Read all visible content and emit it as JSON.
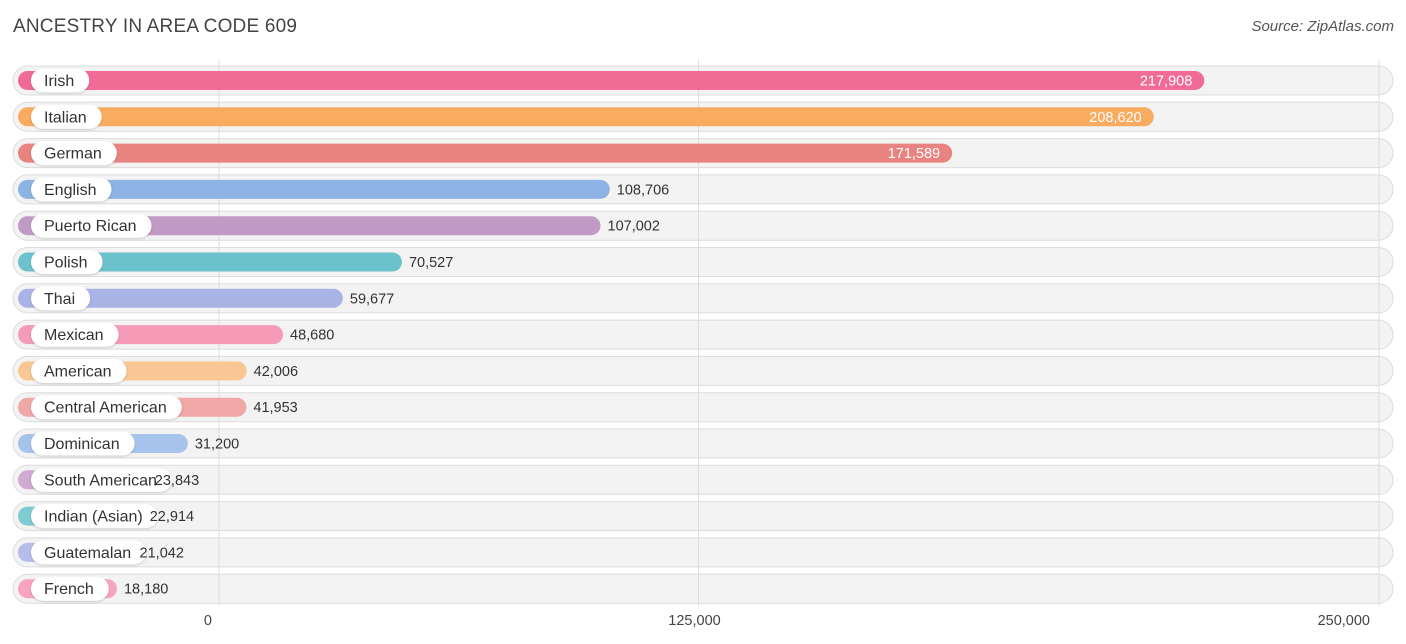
{
  "header": {
    "title": "ANCESTRY IN AREA CODE 609",
    "source": "Source: ZipAtlas.com"
  },
  "chart_data": {
    "type": "bar",
    "orientation": "horizontal",
    "title": "ANCESTRY IN AREA CODE 609",
    "xlabel": "",
    "ylabel": "",
    "xlim": [
      0,
      250000
    ],
    "ticks": [
      0,
      125000,
      250000
    ],
    "tick_labels": [
      "0",
      "125,000",
      "250,000"
    ],
    "categories": [
      "Irish",
      "Italian",
      "German",
      "English",
      "Puerto Rican",
      "Polish",
      "Thai",
      "Mexican",
      "American",
      "Central American",
      "Dominican",
      "South American",
      "Indian (Asian)",
      "Guatemalan",
      "French"
    ],
    "values": [
      217908,
      208620,
      171589,
      108706,
      107002,
      70527,
      59677,
      48680,
      42006,
      41953,
      31200,
      23843,
      22914,
      21042,
      18180
    ],
    "value_labels": [
      "217,908",
      "208,620",
      "171,589",
      "108,706",
      "107,002",
      "70,527",
      "59,677",
      "48,680",
      "42,006",
      "41,953",
      "31,200",
      "23,843",
      "22,914",
      "21,042",
      "18,180"
    ],
    "colors": [
      "#f06b96",
      "#f9ab5f",
      "#e8837f",
      "#8cb3e3",
      "#c29ac6",
      "#6cc2cc",
      "#a9b3e6",
      "#f59bb7",
      "#f8c794",
      "#f0a8a6",
      "#a6c4eb",
      "#cfaad1",
      "#7ecbd2",
      "#b5bdea",
      "#f6a4c0"
    ],
    "value_label_inside": [
      true,
      true,
      true,
      false,
      false,
      false,
      false,
      false,
      false,
      false,
      false,
      false,
      false,
      false,
      false
    ]
  }
}
